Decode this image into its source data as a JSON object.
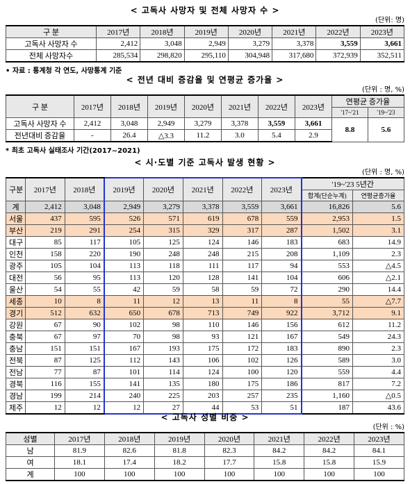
{
  "table1": {
    "title": "< 고독사 사망자 및 전체 사망자 수 >",
    "unit": "(단위: 명)",
    "header": [
      "구 분",
      "2017년",
      "2018년",
      "2019년",
      "2020년",
      "2021년",
      "2022년",
      "2023년"
    ],
    "rows": [
      [
        "고독사 사망자 수",
        "2,412",
        "3,048",
        "2,949",
        "3,279",
        "3,378",
        "3,559",
        "3,661"
      ],
      [
        "전체 사망자수",
        "285,534",
        "298,820",
        "295,110",
        "304,948",
        "317,680",
        "372,939",
        "352,511"
      ]
    ],
    "note": "• 자료 : 통계청 각 연도, 사망통계 기준"
  },
  "table2": {
    "title": "< 전년 대비 증감율 및 연평균 증가율 >",
    "unit": "(단위 : 명, %)",
    "header": [
      "구 분",
      "2017년",
      "2018년",
      "2019년",
      "2020년",
      "2021년",
      "2022년",
      "2023년",
      "연평균 증가율"
    ],
    "subheader": [
      "'17~'21",
      "'19~'23"
    ],
    "rows": [
      [
        "고독사 사망자 수",
        "2,412",
        "3,048",
        "2,949",
        "3,279",
        "3,378",
        "3,559",
        "3,661",
        "8.8",
        "5.6"
      ],
      [
        "전년대비 증감율",
        "-",
        "26.4",
        "△3.3",
        "11.2",
        "3.0",
        "5.4",
        "2.9"
      ]
    ],
    "note": "* 최초 고독사 실태조사 기간(2017~2021)"
  },
  "table3": {
    "title": "< 시·도별 기준 고독사 발생 현황 >",
    "unit": "(단위 : 명, %)",
    "header": [
      "구분",
      "2017년",
      "2018년",
      "2019년",
      "2020년",
      "2021년",
      "2022년",
      "2023년",
      "'19~'23 5년간"
    ],
    "subheader": [
      "합계(단순누계)",
      "연평균증가율"
    ],
    "rows": [
      [
        "계",
        "2,412",
        "3,048",
        "2,949",
        "3,279",
        "3,378",
        "3,559",
        "3,661",
        "16,826",
        "5.6"
      ],
      [
        "서울",
        "437",
        "595",
        "526",
        "571",
        "619",
        "678",
        "559",
        "2,953",
        "1.5"
      ],
      [
        "부산",
        "219",
        "291",
        "254",
        "315",
        "329",
        "317",
        "287",
        "1,502",
        "3.1"
      ],
      [
        "대구",
        "85",
        "117",
        "105",
        "125",
        "124",
        "146",
        "183",
        "683",
        "14.9"
      ],
      [
        "인천",
        "158",
        "220",
        "190",
        "248",
        "248",
        "215",
        "208",
        "1,109",
        "2.3"
      ],
      [
        "광주",
        "105",
        "104",
        "113",
        "118",
        "111",
        "117",
        "94",
        "553",
        "△4.5"
      ],
      [
        "대전",
        "56",
        "95",
        "113",
        "120",
        "128",
        "141",
        "104",
        "606",
        "△2.1"
      ],
      [
        "울산",
        "54",
        "55",
        "42",
        "59",
        "58",
        "59",
        "72",
        "290",
        "14.4"
      ],
      [
        "세종",
        "10",
        "8",
        "11",
        "12",
        "13",
        "11",
        "8",
        "55",
        "△7.7"
      ],
      [
        "경기",
        "512",
        "632",
        "650",
        "678",
        "713",
        "749",
        "922",
        "3,712",
        "9.1"
      ],
      [
        "강원",
        "67",
        "90",
        "102",
        "98",
        "110",
        "146",
        "156",
        "612",
        "11.2"
      ],
      [
        "충북",
        "67",
        "97",
        "70",
        "98",
        "93",
        "121",
        "167",
        "549",
        "24.3"
      ],
      [
        "충남",
        "151",
        "151",
        "167",
        "193",
        "175",
        "172",
        "183",
        "890",
        "2.3"
      ],
      [
        "전북",
        "87",
        "125",
        "112",
        "143",
        "106",
        "102",
        "126",
        "589",
        "3.0"
      ],
      [
        "전남",
        "77",
        "87",
        "101",
        "114",
        "124",
        "100",
        "120",
        "559",
        "4.4"
      ],
      [
        "경북",
        "116",
        "155",
        "141",
        "135",
        "180",
        "175",
        "186",
        "817",
        "7.2"
      ],
      [
        "경남",
        "199",
        "214",
        "240",
        "225",
        "203",
        "257",
        "235",
        "1,160",
        "△0.5"
      ],
      [
        "제주",
        "12",
        "12",
        "12",
        "27",
        "44",
        "53",
        "51",
        "187",
        "43.6"
      ]
    ]
  },
  "table4": {
    "title": "< 고독사 성별 비중 >",
    "unit": "(단위 : %)",
    "header": [
      "성별",
      "2017년",
      "2018년",
      "2019년",
      "2020년",
      "2021년",
      "2022년",
      "2023년"
    ],
    "rows": [
      [
        "남",
        "81.9",
        "82.6",
        "81.8",
        "82.3",
        "84.2",
        "84.2",
        "84.1"
      ],
      [
        "여",
        "18.1",
        "17.4",
        "18.2",
        "17.7",
        "15.8",
        "15.8",
        "15.9"
      ],
      [
        "계",
        "100",
        "100",
        "100",
        "100",
        "100",
        "100",
        "100"
      ]
    ]
  }
}
